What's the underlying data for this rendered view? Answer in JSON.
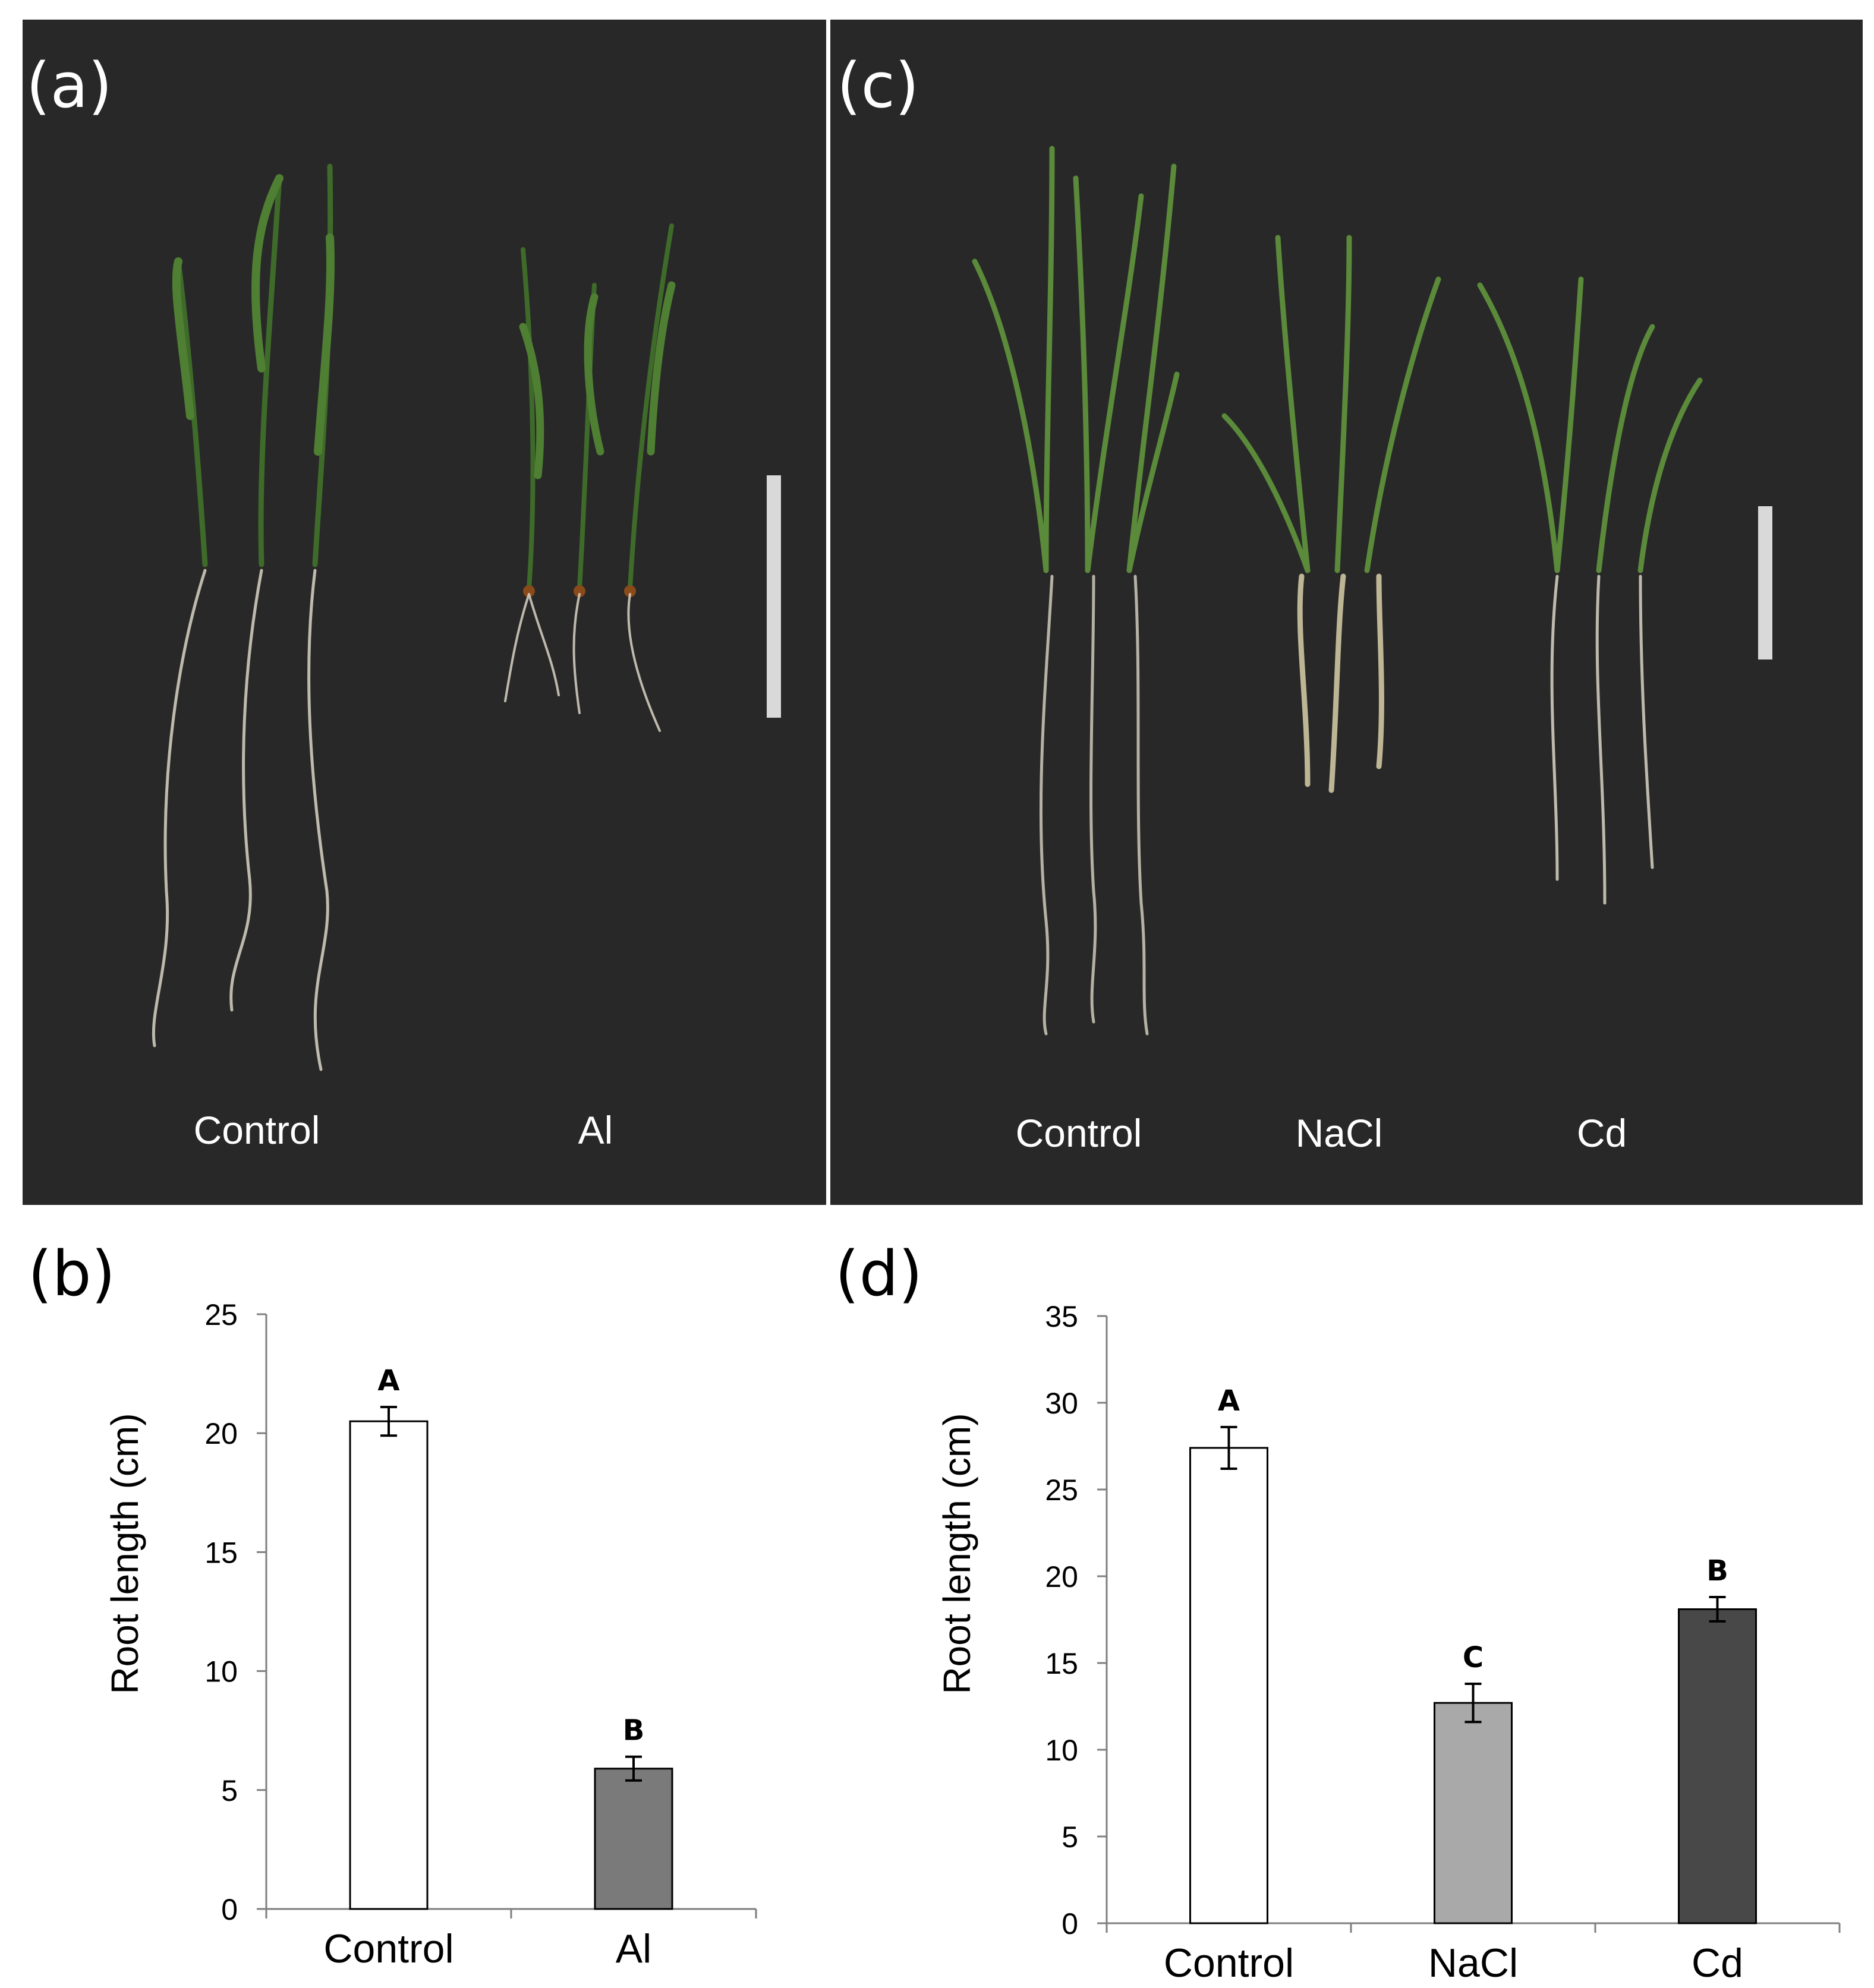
{
  "panels": {
    "a": {
      "letter": "(a)",
      "labels": [
        "Control",
        "Al"
      ],
      "background": "#282828"
    },
    "c": {
      "letter": "(c)",
      "labels": [
        "Control",
        "NaCl",
        "Cd"
      ],
      "background": "#282828"
    },
    "b": {
      "letter": "(b)"
    },
    "d": {
      "letter": "(d)"
    }
  },
  "chart_data": [
    {
      "panel": "b",
      "type": "bar",
      "categories": [
        "Control",
        "Al"
      ],
      "values": [
        20.5,
        5.9
      ],
      "errors": [
        0.6,
        0.5
      ],
      "significance": [
        "A",
        "B"
      ],
      "colors": [
        "#ffffff",
        "#7a7a7a"
      ],
      "ylabel": "Root length (cm)",
      "ylim": [
        0,
        25
      ],
      "yticks": [
        0,
        5,
        10,
        15,
        20,
        25
      ],
      "grid": false
    },
    {
      "panel": "d",
      "type": "bar",
      "categories": [
        "Control",
        "NaCl",
        "Cd"
      ],
      "values": [
        27.4,
        12.7,
        18.1
      ],
      "errors": [
        1.2,
        1.1,
        0.7
      ],
      "significance": [
        "A",
        "C",
        "B"
      ],
      "colors": [
        "#ffffff",
        "#a9a9a9",
        "#484848"
      ],
      "ylabel": "Root length (cm)",
      "ylim": [
        0,
        35
      ],
      "yticks": [
        0,
        5,
        10,
        15,
        20,
        25,
        30,
        35
      ],
      "grid": false
    }
  ]
}
